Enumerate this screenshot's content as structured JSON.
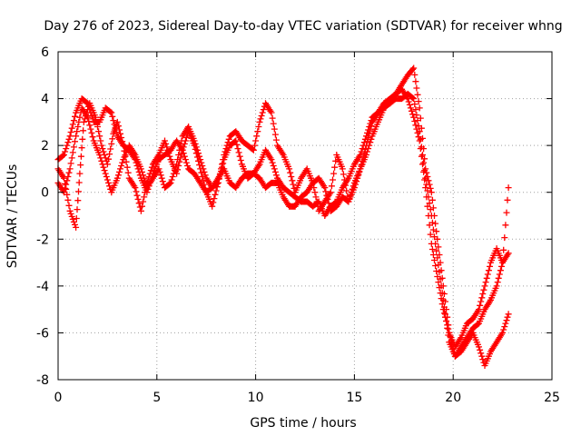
{
  "chart_data": {
    "type": "scatter",
    "title": "Day 276 of 2023, Sidereal Day-to-day VTEC variation (SDTVAR) for receiver whng",
    "xlabel": "GPS time / hours",
    "ylabel": "SDTVAR / TECUs",
    "xlim": [
      0,
      25
    ],
    "ylim": [
      -8,
      6
    ],
    "xticks": [
      0,
      5,
      10,
      15,
      20,
      25
    ],
    "yticks": [
      -8,
      -6,
      -4,
      -2,
      0,
      2,
      4,
      6
    ],
    "grid": true,
    "marker": "+",
    "color": "#ff0000",
    "series": [
      {
        "x": [
          0.0,
          0.3,
          0.6,
          0.9,
          1.1,
          1.3,
          1.6,
          1.9,
          2.2,
          2.5,
          2.8,
          3.0,
          3.3,
          3.6,
          3.9,
          4.2,
          4.5,
          4.8,
          5.1,
          5.4,
          5.7,
          6.0,
          6.3,
          6.6,
          6.9,
          7.2,
          7.5,
          7.8,
          8.1,
          8.4,
          8.7,
          9.0,
          9.3,
          9.6,
          9.9,
          10.2,
          10.5,
          10.8,
          11.1,
          11.4,
          11.7,
          12.0,
          12.3,
          12.6,
          12.9,
          13.2,
          13.5,
          13.8,
          14.1,
          14.4,
          14.7,
          15.0,
          15.3,
          15.6,
          15.9,
          16.2,
          16.5,
          16.8,
          17.1,
          17.4,
          17.7,
          18.0,
          18.3,
          18.6,
          18.9,
          19.2,
          19.5,
          19.8,
          20.1,
          20.4,
          20.7,
          21.0,
          21.3,
          21.6,
          21.9,
          22.2,
          22.5,
          22.8
        ],
        "y": [
          1.0,
          0.6,
          -0.8,
          -1.5,
          0.8,
          3.0,
          3.8,
          3.2,
          2.0,
          1.2,
          2.5,
          3.0,
          2.0,
          0.6,
          0.2,
          -0.8,
          0.4,
          1.2,
          1.6,
          2.2,
          1.4,
          0.8,
          1.8,
          2.6,
          2.0,
          1.0,
          0.0,
          -0.6,
          0.4,
          1.6,
          2.4,
          2.6,
          2.2,
          2.0,
          1.8,
          3.0,
          3.8,
          3.4,
          2.0,
          1.6,
          1.0,
          0.0,
          0.6,
          1.0,
          0.4,
          -0.8,
          -0.4,
          0.0,
          1.6,
          1.0,
          -0.4,
          0.2,
          1.0,
          2.0,
          3.0,
          3.4,
          3.8,
          4.0,
          4.2,
          4.6,
          5.0,
          5.3,
          3.6,
          1.0,
          0.0,
          -2.0,
          -4.0,
          -6.0,
          -7.0,
          -6.6,
          -6.2,
          -5.8,
          -5.6,
          -5.0,
          -4.6,
          -4.0,
          -3.0,
          0.2
        ]
      },
      {
        "x": [
          0.0,
          0.3,
          0.6,
          0.9,
          1.2,
          1.5,
          1.8,
          2.1,
          2.4,
          2.7,
          3.0,
          3.3,
          3.6,
          3.9,
          4.2,
          4.5,
          4.8,
          5.1,
          5.4,
          5.7,
          6.0,
          6.3,
          6.6,
          6.9,
          7.2,
          7.5,
          7.8,
          8.1,
          8.4,
          8.7,
          9.0,
          9.3,
          9.6,
          9.9,
          10.2,
          10.5,
          10.8,
          11.1,
          11.4,
          11.7,
          12.0,
          12.3,
          12.6,
          12.9,
          13.2,
          13.5,
          13.8,
          14.1,
          14.4,
          14.7,
          15.0,
          15.3,
          15.6,
          15.9,
          16.2,
          16.5,
          16.8,
          17.1,
          17.4,
          17.7,
          18.0,
          18.3,
          18.6,
          18.9,
          19.2,
          19.5,
          19.8,
          20.1,
          20.4,
          20.7,
          21.0,
          21.3,
          21.6,
          21.9,
          22.2,
          22.5,
          22.8
        ],
        "y": [
          0.4,
          0.0,
          1.0,
          2.4,
          3.6,
          3.2,
          2.2,
          1.6,
          0.8,
          0.0,
          0.6,
          1.4,
          2.0,
          1.6,
          1.0,
          0.2,
          0.6,
          1.0,
          0.2,
          0.4,
          1.2,
          2.4,
          2.8,
          2.2,
          1.4,
          0.6,
          0.2,
          0.4,
          1.4,
          2.0,
          2.2,
          1.2,
          0.6,
          0.8,
          1.2,
          1.8,
          1.4,
          0.6,
          0.2,
          0.0,
          -0.2,
          -0.4,
          -0.4,
          -0.6,
          -0.4,
          -1.0,
          -0.6,
          -0.4,
          0.2,
          0.6,
          1.2,
          1.6,
          2.4,
          3.2,
          3.4,
          3.8,
          3.8,
          4.0,
          4.0,
          4.2,
          4.0,
          2.6,
          0.6,
          -1.0,
          -2.8,
          -4.6,
          -6.4,
          -7.0,
          -6.8,
          -6.4,
          -6.0,
          -6.6,
          -7.4,
          -6.8,
          -6.4,
          -6.0,
          -5.2
        ]
      },
      {
        "x": [
          0.0,
          0.3,
          0.6,
          0.9,
          1.2,
          1.5,
          1.8,
          2.1,
          2.4,
          2.7,
          3.0,
          3.3,
          3.6,
          3.9,
          4.2,
          4.5,
          4.8,
          5.1,
          5.4,
          5.7,
          6.0,
          6.3,
          6.6,
          6.9,
          7.2,
          7.5,
          7.8,
          8.1,
          8.4,
          8.7,
          9.0,
          9.3,
          9.6,
          9.9,
          10.2,
          10.5,
          10.8,
          11.1,
          11.4,
          11.7,
          12.0,
          12.3,
          12.6,
          12.9,
          13.2,
          13.5,
          13.8,
          14.1,
          14.4,
          14.7,
          15.0,
          15.3,
          15.6,
          15.9,
          16.2,
          16.5,
          16.8,
          17.1,
          17.4,
          17.7,
          18.0,
          18.3,
          18.6,
          18.9,
          19.2,
          19.5,
          19.8,
          20.1,
          20.4,
          20.7,
          21.0,
          21.3,
          21.6,
          21.9,
          22.2,
          22.5,
          22.8
        ],
        "y": [
          1.4,
          1.6,
          2.4,
          3.4,
          4.0,
          3.8,
          3.0,
          3.0,
          3.6,
          3.4,
          2.4,
          2.0,
          1.8,
          1.4,
          0.6,
          0.0,
          0.8,
          1.4,
          1.6,
          1.8,
          2.2,
          1.8,
          1.0,
          0.8,
          0.4,
          0.0,
          0.2,
          0.6,
          1.0,
          0.4,
          0.2,
          0.6,
          0.8,
          0.8,
          0.6,
          0.2,
          0.4,
          0.4,
          -0.2,
          -0.6,
          -0.6,
          -0.2,
          0.0,
          0.4,
          0.6,
          0.2,
          -0.8,
          -0.6,
          -0.2,
          -0.4,
          0.4,
          1.0,
          1.6,
          2.4,
          3.0,
          3.6,
          3.8,
          4.2,
          4.4,
          4.0,
          3.2,
          2.2,
          0.2,
          -2.2,
          -3.6,
          -5.0,
          -6.0,
          -6.6,
          -6.2,
          -5.6,
          -5.4,
          -5.0,
          -4.0,
          -3.0,
          -2.4,
          -3.0,
          -2.6
        ]
      }
    ]
  }
}
